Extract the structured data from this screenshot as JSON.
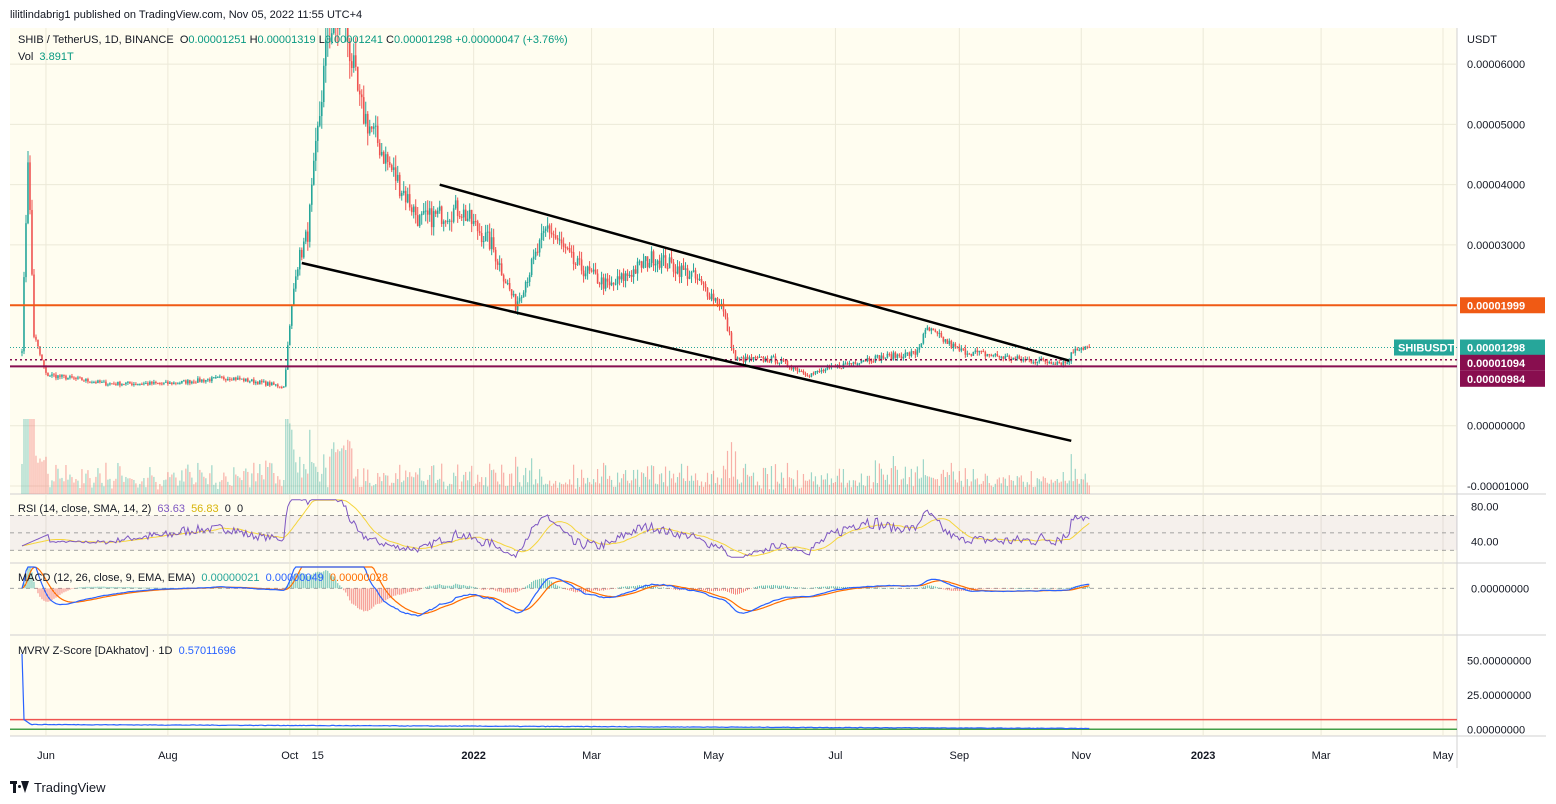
{
  "header": {
    "published": "lilitlindabrig1 published on TradingView.com, Nov 05, 2022 11:55 UTC+4"
  },
  "legend_main": {
    "symbol": "SHIB / TetherUS, 1D, BINANCE",
    "o_label": "O",
    "o": "0.00001251",
    "h_label": "H",
    "h": "0.00001319",
    "l_label": "L",
    "l": "0.00001241",
    "c_label": "C",
    "c": "0.00001298",
    "change": "+0.00000047 (+3.76%)",
    "vol_label": "Vol",
    "vol": "3.891T"
  },
  "legend_rsi": {
    "label": "RSI (14, close, SMA, 14, 2)",
    "v1": "63.63",
    "v2": "56.83",
    "v3": "0",
    "v4": "0"
  },
  "legend_macd": {
    "label": "MACD (12, 26, close, 9, EMA, EMA)",
    "v1": "0.00000021",
    "v2": "0.00000049",
    "v3": "0.00000028"
  },
  "legend_mvrv": {
    "label": "MVRV Z-Score [DAkhatov] · 1D",
    "v1": "0.57011696"
  },
  "axis": {
    "unit": "USDT",
    "price_ticks": [
      "0.00006000",
      "0.00005000",
      "0.00004000",
      "0.00003000",
      "0.00000000",
      "-0.00001000"
    ],
    "rsi_ticks": [
      "80.00",
      "40.00"
    ],
    "macd_ticks": [
      "0.00000000"
    ],
    "mvrv_ticks": [
      "50.00000000",
      "25.00000000",
      "0.00000000"
    ],
    "time_ticks": [
      "Jun",
      "Aug",
      "Oct",
      "15",
      "2022",
      "Mar",
      "May",
      "Jul",
      "Sep",
      "Nov",
      "2023",
      "Mar",
      "May"
    ]
  },
  "price_labels": {
    "resistance": "0.00001999",
    "symbol": "SHIBUSDT",
    "last": "0.00001298",
    "line2": "0.00001094",
    "line3": "0.00000984"
  },
  "colors": {
    "background": "#fffdf0",
    "up": "#26a69a",
    "down": "#ef5350",
    "resistance": "#f05a14",
    "support": "#880e4f",
    "last": "#26a69a",
    "rsi": "#7e57c2",
    "rsi_ma": "#f5d53c",
    "macd": "#2962ff",
    "signal": "#ff6d00",
    "mvrv": "#2962ff"
  },
  "footer": {
    "brand": "TradingView"
  },
  "chart_data": {
    "type": "candlestick",
    "ylim": [
      -1e-05,
      6.5e-05
    ],
    "resistance_level": 1.999e-05,
    "support_levels": [
      1.094e-05,
      9.84e-06
    ],
    "last_price": 1.298e-05,
    "anchors": [
      {
        "d": "2021-05-20",
        "v": 1.3e-05
      },
      {
        "d": "2021-05-23",
        "v": 4.5e-05
      },
      {
        "d": "2021-05-26",
        "v": 1.5e-05
      },
      {
        "d": "2021-06-01",
        "v": 8.5e-06
      },
      {
        "d": "2021-07-01",
        "v": 7e-06
      },
      {
        "d": "2021-08-01",
        "v": 7e-06
      },
      {
        "d": "2021-09-01",
        "v": 8e-06
      },
      {
        "d": "2021-09-28",
        "v": 6.5e-06
      },
      {
        "d": "2021-10-04",
        "v": 2.6e-05
      },
      {
        "d": "2021-10-10",
        "v": 3.2e-05
      },
      {
        "d": "2021-10-20",
        "v": 6.5e-05
      },
      {
        "d": "2021-10-28",
        "v": 6.8e-05
      },
      {
        "d": "2021-11-05",
        "v": 5.3e-05
      },
      {
        "d": "2021-11-20",
        "v": 4.3e-05
      },
      {
        "d": "2021-12-05",
        "v": 3.4e-05
      },
      {
        "d": "2021-12-25",
        "v": 3.6e-05
      },
      {
        "d": "2022-01-10",
        "v": 3e-05
      },
      {
        "d": "2022-01-22",
        "v": 2e-05
      },
      {
        "d": "2022-02-07",
        "v": 3.3e-05
      },
      {
        "d": "2022-02-20",
        "v": 2.7e-05
      },
      {
        "d": "2022-03-10",
        "v": 2.3e-05
      },
      {
        "d": "2022-04-01",
        "v": 2.8e-05
      },
      {
        "d": "2022-04-20",
        "v": 2.5e-05
      },
      {
        "d": "2022-05-05",
        "v": 2e-05
      },
      {
        "d": "2022-05-12",
        "v": 1.1e-05
      },
      {
        "d": "2022-06-01",
        "v": 1.1e-05
      },
      {
        "d": "2022-06-18",
        "v": 8.5e-06
      },
      {
        "d": "2022-07-15",
        "v": 1.1e-05
      },
      {
        "d": "2022-08-10",
        "v": 1.2e-05
      },
      {
        "d": "2022-08-16",
        "v": 1.6e-05
      },
      {
        "d": "2022-09-01",
        "v": 1.25e-05
      },
      {
        "d": "2022-10-01",
        "v": 1.1e-05
      },
      {
        "d": "2022-10-25",
        "v": 1.05e-05
      },
      {
        "d": "2022-10-29",
        "v": 1.3e-05
      },
      {
        "d": "2022-11-05",
        "v": 1.298e-05
      }
    ],
    "trendlines": [
      {
        "from": {
          "d": "2021-12-15",
          "v": 4e-05
        },
        "to": {
          "d": "2022-10-26",
          "v": 1.08e-05
        }
      },
      {
        "from": {
          "d": "2021-10-07",
          "v": 2.7e-05
        },
        "to": {
          "d": "2022-10-27",
          "v": -2.5e-06
        }
      }
    ],
    "rsi_range": [
      20,
      90
    ],
    "macd_range": [
      -6e-06,
      3e-06
    ],
    "mvrv_range": [
      -2,
      60
    ],
    "mvrv_levels": [
      7,
      0
    ],
    "mvrv_last": 0.57011696,
    "x_range": [
      "2021-05-14",
      "2023-05-08"
    ],
    "time_tick_dates": [
      "2021-06-01",
      "2021-08-01",
      "2021-10-01",
      "2021-10-15",
      "2022-01-01",
      "2022-03-01",
      "2022-05-01",
      "2022-07-01",
      "2022-09-01",
      "2022-11-01",
      "2023-01-01",
      "2023-03-01",
      "2023-05-01"
    ]
  }
}
